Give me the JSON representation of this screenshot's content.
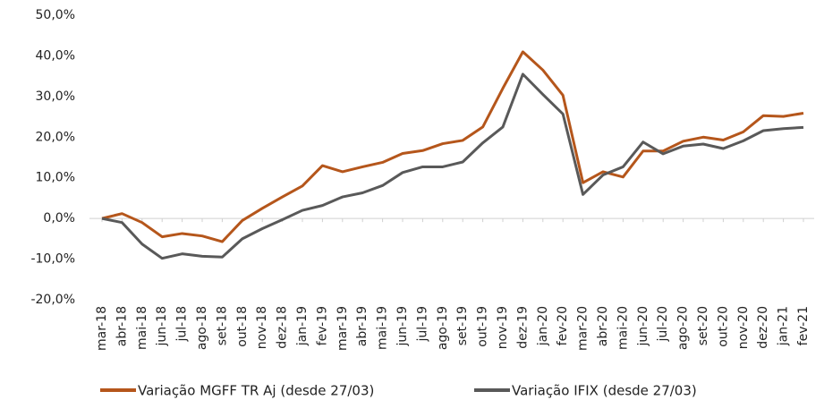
{
  "chart_data": {
    "type": "line",
    "categories": [
      "mar-18",
      "abr-18",
      "mai-18",
      "jun-18",
      "jul-18",
      "ago-18",
      "set-18",
      "out-18",
      "nov-18",
      "dez-18",
      "jan-19",
      "fev-19",
      "mar-19",
      "abr-19",
      "mai-19",
      "jun-19",
      "jul-19",
      "ago-19",
      "set-19",
      "out-19",
      "nov-19",
      "dez-19",
      "jan-20",
      "fev-20",
      "mar-20",
      "abr-20",
      "mai-20",
      "jun-20",
      "jul-20",
      "ago-20",
      "set-20",
      "out-20",
      "nov-20",
      "dez-20",
      "jan-21",
      "fev-21"
    ],
    "series": [
      {
        "name": "Variação MGFF TR Aj (desde 27/03)",
        "color": "#b5561b",
        "values": [
          0,
          1.2,
          -1,
          -4.5,
          -3.7,
          -4.3,
          -5.7,
          -0.5,
          2.5,
          5.3,
          8,
          13,
          11.5,
          12.7,
          13.8,
          16,
          16.7,
          18.4,
          19.2,
          22.5,
          32,
          41,
          36.5,
          30.3,
          8.8,
          11.5,
          10.2,
          16.6,
          16.6,
          19,
          20,
          19.3,
          21.3,
          25.3,
          25.1,
          25.9
        ]
      },
      {
        "name": "Variação IFIX (desde 27/03)",
        "color": "#595959",
        "values": [
          0,
          -1,
          -6.3,
          -9.8,
          -8.7,
          -9.3,
          -9.5,
          -5,
          -2.5,
          -0.3,
          2,
          3.2,
          5.3,
          6.3,
          8.1,
          11.3,
          12.7,
          12.7,
          13.9,
          18.6,
          22.5,
          35.5,
          30.5,
          25.7,
          5.9,
          10.7,
          12.7,
          18.8,
          15.9,
          17.8,
          18.3,
          17.2,
          19.1,
          21.6,
          22.1,
          22.4
        ]
      }
    ],
    "ylim": [
      -20,
      50
    ],
    "yticks": [
      {
        "value": -20,
        "label": "-20,0%"
      },
      {
        "value": -10,
        "label": "-10,0%"
      },
      {
        "value": 0,
        "label": "0,0%"
      },
      {
        "value": 10,
        "label": "10,0%"
      },
      {
        "value": 20,
        "label": "20,0%"
      },
      {
        "value": 30,
        "label": "30,0%"
      },
      {
        "value": 40,
        "label": "40,0%"
      },
      {
        "value": 50,
        "label": "50,0%"
      }
    ],
    "legend": "bottom"
  }
}
